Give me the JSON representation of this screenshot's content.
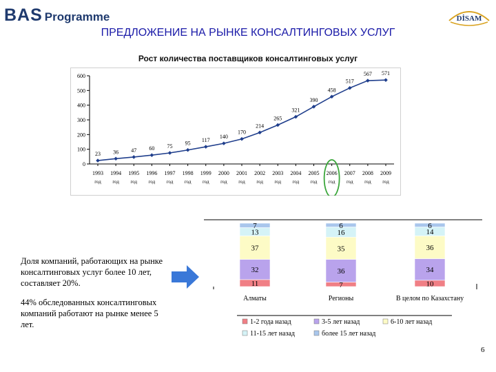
{
  "header": {
    "logo_main": "BAS",
    "logo_sub": "Programme",
    "partner_logo": "DİSAM",
    "title": "ПРЕДЛОЖЕНИЕ НА РЫНКЕ КОНСАЛТИНГОВЫХ УСЛУГ"
  },
  "notes": {
    "text1": "Доля компаний, работающих на рынке консалтинговых услуг более 10 лет, составляет 20%.",
    "text2": "44% обследованных консалтинговых компаний работают на рынке менее 5 лет."
  },
  "page_number": "6",
  "colors": {
    "line": "#1f3e8c",
    "highlight": "#3aa63a",
    "arrow": "#3a78d8",
    "title": "#1a1aa8"
  },
  "chart_data": [
    {
      "type": "line",
      "title": "Рост количества поставщиков консалтинговых услуг",
      "x": [
        "1993",
        "1994",
        "1995",
        "1996",
        "1997",
        "1998",
        "1999",
        "2000",
        "2001",
        "2002",
        "2003",
        "2004",
        "2005",
        "2006",
        "2007",
        "2008",
        "2009"
      ],
      "x_suffix": "год",
      "series": [
        {
          "values": [
            23,
            36,
            47,
            60,
            75,
            95,
            117,
            140,
            170,
            214,
            265,
            321,
            390,
            458,
            517,
            567,
            571
          ]
        }
      ],
      "ylim": [
        0,
        600
      ],
      "yticks": [
        0,
        100,
        200,
        300,
        400,
        500,
        600
      ],
      "highlighted_category": "2006",
      "grid": false,
      "legend": "none"
    },
    {
      "type": "bar",
      "stacked": true,
      "categories": [
        "Алматы",
        "Регионы",
        "В целом по Казахстану"
      ],
      "series": [
        {
          "name": "1-2 года назад",
          "color": "#f07f85",
          "values": [
            11,
            7,
            10
          ]
        },
        {
          "name": "3-5 лет назад",
          "color": "#b9a3ec",
          "values": [
            32,
            36,
            34
          ]
        },
        {
          "name": "6-10 лет назад",
          "color": "#fdfbc6",
          "values": [
            37,
            35,
            36
          ]
        },
        {
          "name": "11-15 лет назад",
          "color": "#d5f3f7",
          "values": [
            13,
            16,
            14
          ]
        },
        {
          "name": "более 15 лет назад",
          "color": "#a9c6ec",
          "values": [
            7,
            6,
            6
          ]
        }
      ],
      "ylim": [
        0,
        100
      ],
      "legend": "bottom"
    }
  ]
}
